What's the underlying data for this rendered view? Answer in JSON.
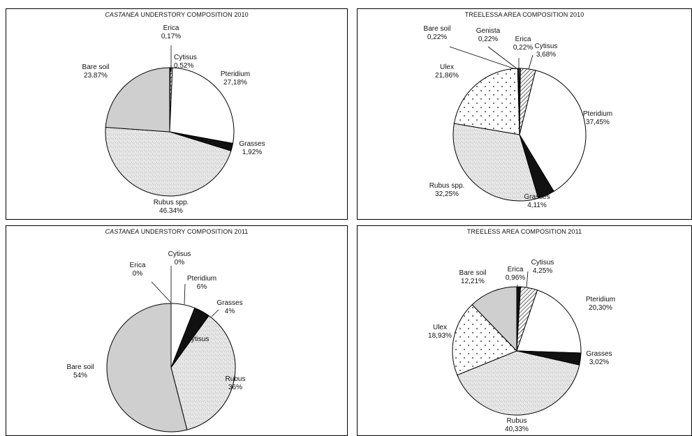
{
  "chart_data": [
    {
      "type": "pie",
      "title_italic": "CASTANEA",
      "title_rest": " UNDERSTORY COMPOSITION 2010",
      "slices": [
        {
          "name": "Erica",
          "label": "0,17%",
          "value": 0.17,
          "fill": "hatch"
        },
        {
          "name": "Cytisus",
          "label": "0,52%",
          "value": 0.52,
          "fill": "hatch"
        },
        {
          "name": "Pteridium",
          "label": "27,18%",
          "value": 27.18,
          "fill": "white"
        },
        {
          "name": "Grasses",
          "label": "1,92%",
          "value": 1.92,
          "fill": "black"
        },
        {
          "name": "Rubus spp.",
          "label": "46.34%",
          "value": 46.34,
          "fill": "speckle"
        },
        {
          "name": "Bare soil",
          "label": "23.87%",
          "value": 23.87,
          "fill": "gray"
        }
      ]
    },
    {
      "type": "pie",
      "title_italic": "",
      "title_rest": "TREELESSA AREA COMPOSITION 2010",
      "slices": [
        {
          "name": "Erica",
          "label": "0,22%",
          "value": 0.22,
          "fill": "white"
        },
        {
          "name": "Cytisus",
          "label": "3,68%",
          "value": 3.68,
          "fill": "hatch"
        },
        {
          "name": "Pteridium",
          "label": "37,45%",
          "value": 37.45,
          "fill": "white"
        },
        {
          "name": "Grasses",
          "label": "4,11%",
          "value": 4.11,
          "fill": "black"
        },
        {
          "name": "Rubus spp.",
          "label": "32,25%",
          "value": 32.25,
          "fill": "speckle"
        },
        {
          "name": "Ulex",
          "label": "21,86%",
          "value": 21.86,
          "fill": "dots"
        },
        {
          "name": "Bare soil",
          "label": "0,22%",
          "value": 0.22,
          "fill": "gray"
        },
        {
          "name": "Genista",
          "label": "0,22%",
          "value": 0.22,
          "fill": "white"
        }
      ]
    },
    {
      "type": "pie",
      "title_italic": "CASTANEA",
      "title_rest": " UNDERSTORY COMPOSITION 2011",
      "slices": [
        {
          "name": "Cytisus",
          "label": "0%",
          "value": 0,
          "fill": "hatch"
        },
        {
          "name": "Pteridium",
          "label": "6%",
          "value": 6,
          "fill": "white"
        },
        {
          "name": "Grasses",
          "label": "4%",
          "value": 4,
          "fill": "black"
        },
        {
          "name": "Rubus",
          "label": "36%",
          "value": 36,
          "fill": "speckle"
        },
        {
          "name": "Bare soil",
          "label": "54%",
          "value": 54,
          "fill": "gray"
        },
        {
          "name": "Erica",
          "label": "0%",
          "value": 0,
          "fill": "white"
        }
      ],
      "stray_label": "Cytisus"
    },
    {
      "type": "pie",
      "title_italic": "",
      "title_rest": "TREELESS AREA COMPOSITION 2011",
      "slices": [
        {
          "name": "Erica",
          "label": "0,96%",
          "value": 0.96,
          "fill": "black"
        },
        {
          "name": "Cytisus",
          "label": "4,25%",
          "value": 4.25,
          "fill": "hatch"
        },
        {
          "name": "Pteridium",
          "label": "20,30%",
          "value": 20.3,
          "fill": "white"
        },
        {
          "name": "Grasses",
          "label": "3,02%",
          "value": 3.02,
          "fill": "black"
        },
        {
          "name": "Rubus",
          "label": "40,33%",
          "value": 40.33,
          "fill": "speckle"
        },
        {
          "name": "Ulex",
          "label": "18,93%",
          "value": 18.93,
          "fill": "dots"
        },
        {
          "name": "Bare soil",
          "label": "12,21%",
          "value": 12.21,
          "fill": "gray"
        }
      ]
    }
  ]
}
